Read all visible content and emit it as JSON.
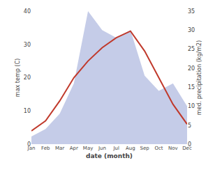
{
  "chart_data": {
    "type": "line",
    "categories": [
      "Jan",
      "Feb",
      "Mar",
      "Apr",
      "May",
      "Jun",
      "Jul",
      "Aug",
      "Sep",
      "Oct",
      "Nov",
      "Dec"
    ],
    "series": [
      {
        "type": "area",
        "color": "#c5cce8",
        "axis": "y2",
        "values": [
          2,
          4,
          8,
          16,
          35,
          30,
          28,
          30,
          18,
          14,
          16,
          10
        ]
      },
      {
        "type": "line",
        "color": "#c0392b",
        "values": [
          4,
          7,
          13,
          20,
          25,
          29,
          32,
          34,
          28,
          20,
          12,
          6
        ]
      }
    ],
    "xlabel": "date (month)",
    "ylabel": "max temp (C)",
    "y2label": "med. precipitation (kg/m2)",
    "ylim": [
      0,
      40
    ],
    "yticks": [
      0,
      10,
      20,
      30,
      40
    ],
    "y2lim": [
      0,
      35
    ],
    "y2ticks": [
      0,
      5,
      10,
      15,
      20,
      25,
      30,
      35
    ],
    "grid": false
  }
}
